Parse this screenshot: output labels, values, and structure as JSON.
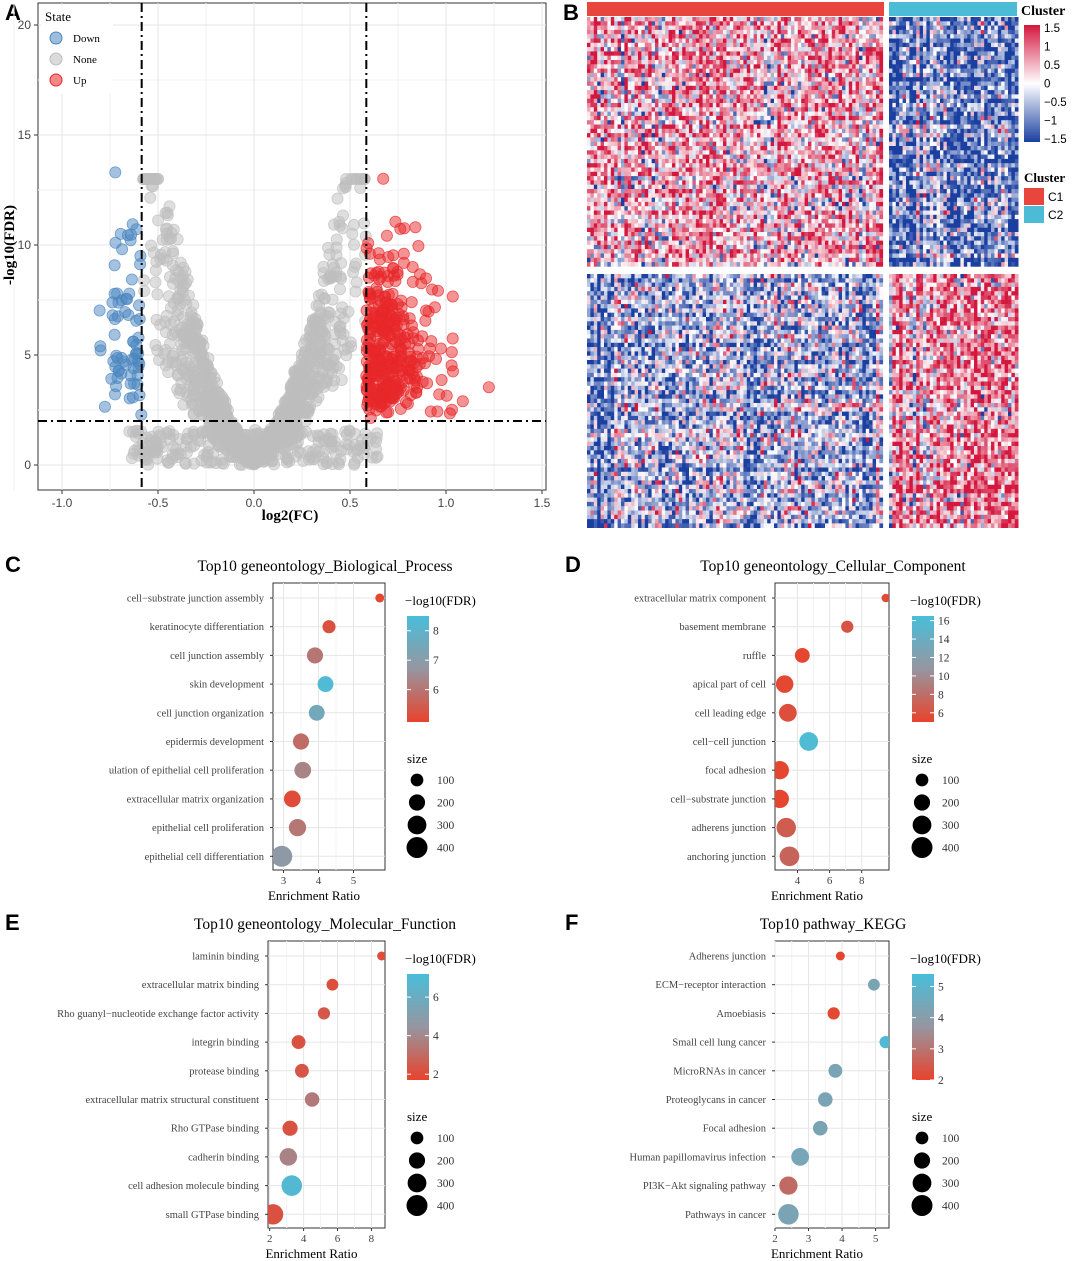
{
  "panels": {
    "a": "A",
    "b": "B",
    "c": "C",
    "d": "D",
    "e": "E",
    "f": "F"
  },
  "volcano": {
    "xlabel": "log2(FC)",
    "ylabel": "-log10(FDR)",
    "legend_title": "State",
    "states": [
      {
        "label": "Down",
        "color": "#4a86c0"
      },
      {
        "label": "None",
        "color": "#bdbdbd"
      },
      {
        "label": "Up",
        "color": "#e8272a"
      }
    ],
    "xticks": [
      "-1.0",
      "-0.5",
      "0.0",
      "0.5",
      "1.0",
      "1.5"
    ],
    "yticks": [
      "0",
      "5",
      "10",
      "15",
      "20"
    ],
    "xlim": [
      -1.1,
      1.55
    ],
    "ylim": [
      -1,
      21
    ],
    "fc_cutoffs": [
      -0.585,
      0.585
    ],
    "fdr_cutoff": 2
  },
  "heatmap": {
    "legend_title": "Cluster",
    "colorbar_ticks": [
      "1.5",
      "1",
      "0.5",
      "0",
      "−0.5",
      "−1",
      "−1.5"
    ],
    "clusters": [
      {
        "label": "C1",
        "color": "#e8453c"
      },
      {
        "label": "C2",
        "color": "#4bbbd6"
      }
    ]
  },
  "chart_data": [
    {
      "type": "scatter",
      "title": "Top10 geneontology_Biological_Process",
      "xlabel": "Enrichment Ratio",
      "xlim": [
        2.7,
        5.9
      ],
      "xticks": [
        "3",
        "4",
        "5"
      ],
      "xtick_values": [
        3,
        4,
        5
      ],
      "colorbar_label": "−log10(FDR)",
      "colorbar_ticks": [
        "8",
        "7",
        "6"
      ],
      "colorbar_values": [
        8,
        7,
        6
      ],
      "color_range": [
        4.9,
        8.5
      ],
      "size_label": "size",
      "size_ticks": [
        "100",
        "200",
        "300",
        "400"
      ],
      "categories": [
        "cell−substrate junction assembly",
        "keratinocyte differentiation",
        "cell junction assembly",
        "skin development",
        "cell junction organization",
        "epidermis development",
        "regulation of epithelial cell proliferation",
        "extracellular matrix organization",
        "epithelial cell proliferation",
        "epithelial cell differentiation"
      ],
      "visible_labels": [
        "cell−substrate junction assembly",
        "keratinocyte differentiation",
        "cell junction assembly",
        "skin development",
        "cell junction organization",
        "epidermis development",
        "ulation of epithelial cell proliferation",
        "extracellular matrix organization",
        "epithelial cell proliferation",
        "epithelial cell differentiation"
      ],
      "x": [
        5.75,
        4.3,
        3.9,
        4.2,
        3.95,
        3.5,
        3.55,
        3.25,
        3.4,
        2.95
      ],
      "fdr": [
        5.0,
        5.2,
        6.0,
        8.3,
        7.5,
        5.8,
        6.3,
        5.1,
        6.0,
        6.9
      ],
      "size": [
        30,
        110,
        200,
        190,
        190,
        200,
        220,
        220,
        240,
        400
      ]
    },
    {
      "type": "scatter",
      "title": "Top10 geneontology_Cellular_Component",
      "xlabel": "Enrichment Ratio",
      "xlim": [
        2.6,
        9.7
      ],
      "xticks": [
        "4",
        "6",
        "8"
      ],
      "xtick_values": [
        4,
        6,
        8
      ],
      "colorbar_label": "−log10(FDR)",
      "colorbar_ticks": [
        "16",
        "14",
        "12",
        "10",
        "8",
        "6"
      ],
      "colorbar_values": [
        16,
        14,
        12,
        10,
        8,
        6
      ],
      "color_range": [
        5,
        16.5
      ],
      "size_label": "size",
      "size_ticks": [
        "100",
        "200",
        "300",
        "400"
      ],
      "categories": [
        "extracellular matrix component",
        "basement membrane",
        "ruffle",
        "apical part of cell",
        "cell leading edge",
        "cell−cell junction",
        "focal adhesion",
        "cell−substrate junction",
        "adherens junction",
        "anchoring junction"
      ],
      "visible_labels": [
        "extracellular matrix component",
        "basement membrane",
        "ruffle",
        "apical part of cell",
        "cell leading edge",
        "cell−cell junction",
        "focal adhesion",
        "cell−substrate junction",
        "adherens junction",
        "anchoring junction"
      ],
      "x": [
        9.5,
        7.1,
        4.3,
        3.2,
        3.4,
        4.7,
        2.9,
        2.9,
        3.3,
        3.5
      ],
      "fdr": [
        5.5,
        6.2,
        5.2,
        5.3,
        5.8,
        16.0,
        5.2,
        5.2,
        6.8,
        7.3
      ],
      "size": [
        25,
        90,
        160,
        250,
        260,
        300,
        280,
        280,
        330,
        340
      ]
    },
    {
      "type": "scatter",
      "title": "Top10 geneontology_Molecular_Function",
      "xlabel": "Enrichment Ratio",
      "xlim": [
        1.9,
        8.8
      ],
      "xticks": [
        "2",
        "4",
        "6",
        "8"
      ],
      "xtick_values": [
        2,
        4,
        6,
        8
      ],
      "colorbar_label": "−log10(FDR)",
      "colorbar_ticks": [
        "6",
        "4",
        "2"
      ],
      "colorbar_values": [
        6,
        4,
        2
      ],
      "color_range": [
        1.7,
        7.2
      ],
      "size_label": "size",
      "size_ticks": [
        "100",
        "200",
        "300",
        "400"
      ],
      "categories": [
        "laminin binding",
        "extracellular matrix binding",
        "Rho guanyl−nucleotide exchange factor activity",
        "integrin binding",
        "protease binding",
        "extracellular matrix structural constituent",
        "Rho GTPase binding",
        "cadherin binding",
        "cell adhesion molecule binding",
        "small GTPase binding"
      ],
      "visible_labels": [
        "laminin binding",
        "extracellular matrix binding",
        "Rho guanyl−nucleotide exchange factor activity",
        "integrin binding",
        "protease binding",
        "extracellular matrix structural constituent",
        "Rho GTPase binding",
        "cadherin binding",
        "cell adhesion molecule binding",
        "small GTPase binding"
      ],
      "x": [
        8.6,
        5.7,
        5.2,
        3.7,
        3.9,
        4.5,
        3.2,
        3.1,
        3.3,
        2.2
      ],
      "fdr": [
        2.0,
        2.1,
        2.4,
        2.2,
        2.3,
        3.5,
        2.2,
        3.8,
        6.8,
        2.2
      ],
      "size": [
        30,
        80,
        90,
        130,
        130,
        150,
        170,
        250,
        380,
        370
      ]
    },
    {
      "type": "scatter",
      "title": "Top10 pathway_KEGG",
      "xlabel": "Enrichment Ratio",
      "xlim": [
        2.0,
        5.4
      ],
      "xticks": [
        "2",
        "3",
        "4",
        "5"
      ],
      "xtick_values": [
        2,
        3,
        4,
        5
      ],
      "colorbar_label": "−log10(FDR)",
      "colorbar_ticks": [
        "5",
        "4",
        "3",
        "2"
      ],
      "colorbar_values": [
        5,
        4,
        3,
        2
      ],
      "color_range": [
        2,
        5.4
      ],
      "size_label": "size",
      "size_ticks": [
        "100",
        "200",
        "300",
        "400"
      ],
      "categories": [
        "Adherens junction",
        "ECM−receptor interaction",
        "Amoebiasis",
        "Small cell lung cancer",
        "MicroRNAs in cancer",
        "Proteoglycans in cancer",
        "Focal adhesion",
        "Human papillomavirus infection",
        "PI3K−Akt signaling pathway",
        "Pathways in cancer"
      ],
      "visible_labels": [
        "Adherens junction",
        "ECM−receptor interaction",
        "Amoebiasis",
        "Small cell lung cancer",
        "MicroRNAs in cancer",
        "Proteoglycans in cancer",
        "Focal adhesion",
        "Human papillomavirus infection",
        "PI3K−Akt signaling pathway",
        "Pathways in cancer"
      ],
      "x": [
        3.95,
        4.95,
        3.75,
        5.3,
        3.8,
        3.5,
        3.35,
        2.75,
        2.4,
        2.4
      ],
      "fdr": [
        2.0,
        4.3,
        2.1,
        5.2,
        4.3,
        4.3,
        4.3,
        4.4,
        2.8,
        4.3
      ],
      "size": [
        30,
        80,
        90,
        90,
        130,
        150,
        150,
        260,
        280,
        380
      ]
    }
  ]
}
